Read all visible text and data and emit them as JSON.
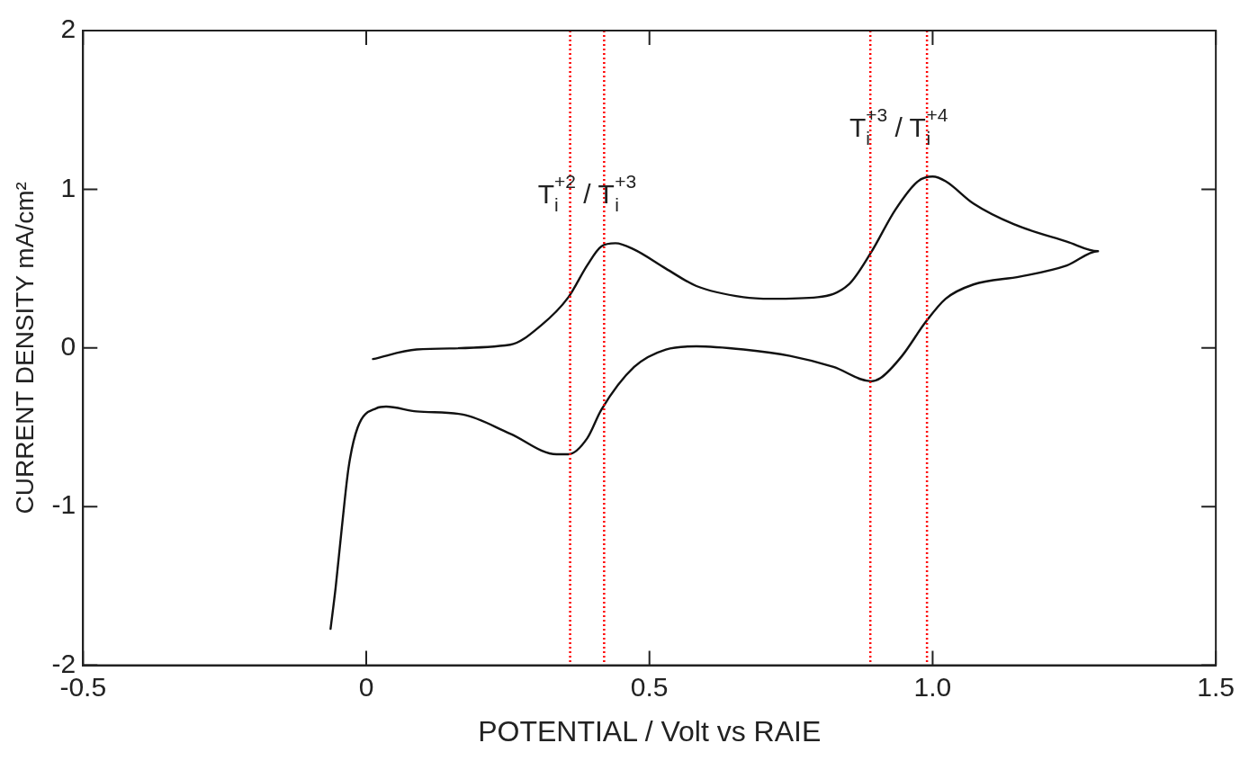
{
  "chart_data": {
    "type": "line",
    "xlabel": "POTENTIAL / Volt vs RAIE",
    "ylabel": "CURRENT DENSITY mA/cm²",
    "xlim": [
      -0.5,
      1.5
    ],
    "xticks": [
      -0.5,
      0,
      0.5,
      {
        "value": 1,
        "label": "1.0"
      },
      1.5
    ],
    "ylim": [
      -2,
      2
    ],
    "yticks": [
      -2,
      -1,
      0,
      1,
      2
    ],
    "grid": false,
    "legend": false,
    "marker": "none",
    "line_style": "solid",
    "series": [
      {
        "color": "#111111",
        "x": [
          0.012,
          0.089,
          0.254,
          0.308,
          0.357,
          0.39,
          0.415,
          0.44,
          0.473,
          0.529,
          0.583,
          0.666,
          0.715,
          0.797,
          0.852,
          0.891,
          0.934,
          0.974,
          1.0,
          1.023,
          1.072,
          1.143,
          1.237,
          1.292,
          1.237,
          1.155,
          1.072,
          1.023,
          0.987,
          0.946,
          0.908,
          0.891,
          0.825,
          0.748,
          0.666,
          0.583,
          0.529,
          0.473,
          0.415,
          0.39,
          0.357,
          0.336,
          0.254,
          0.171,
          0.089,
          0.035,
          0.018,
          -0.015,
          -0.031,
          -0.043,
          -0.054,
          -0.063
        ],
        "values": [
          -0.07,
          -0.01,
          0.02,
          0.14,
          0.32,
          0.52,
          0.64,
          0.66,
          0.62,
          0.5,
          0.39,
          0.32,
          0.31,
          0.32,
          0.4,
          0.6,
          0.87,
          1.05,
          1.08,
          1.05,
          0.91,
          0.78,
          0.67,
          0.61,
          0.52,
          0.45,
          0.4,
          0.31,
          0.16,
          -0.05,
          -0.19,
          -0.21,
          -0.12,
          -0.05,
          -0.01,
          0.01,
          -0.01,
          -0.12,
          -0.39,
          -0.57,
          -0.67,
          -0.67,
          -0.54,
          -0.42,
          -0.4,
          -0.37,
          -0.38,
          -0.5,
          -0.75,
          -1.13,
          -1.51,
          -1.77
        ]
      }
    ],
    "ref_lines": [
      {
        "axis": "x",
        "value": 0.36,
        "color": "#ff0000",
        "line_style": "dotted"
      },
      {
        "axis": "x",
        "value": 0.42,
        "color": "#ff0000",
        "line_style": "dotted"
      },
      {
        "axis": "x",
        "value": 0.89,
        "color": "#ff0000",
        "line_style": "dotted"
      },
      {
        "axis": "x",
        "value": 0.99,
        "color": "#ff0000",
        "line_style": "dotted"
      }
    ],
    "annotations": [
      "T$_{i}$$^{+2}$ / T$_{i}$$^{+3}$",
      "T$_{i}$$^{+3}$ / T$_{i}$$^{+4}$"
    ]
  }
}
